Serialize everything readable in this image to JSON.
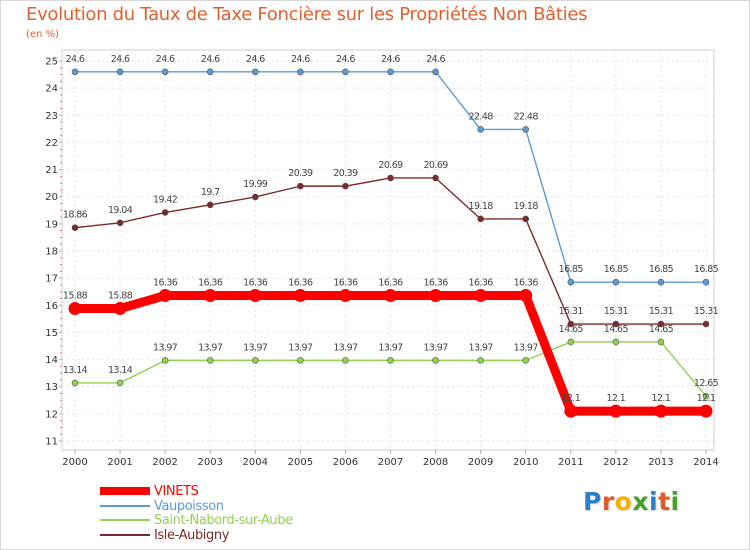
{
  "title": "Evolution du Taux de Taxe Foncière sur les Propriétés Non Bâties",
  "unit_label": "(en %)",
  "brand": {
    "text": "Proxiti",
    "letters": [
      "P",
      "r",
      "o",
      "x",
      "i",
      "t",
      "i"
    ],
    "colors": [
      "#2a7fc8",
      "#e05a2a",
      "#f2b200",
      "#4aa02c",
      "#2a7fc8",
      "#e05a2a",
      "#4aa02c"
    ]
  },
  "chart_data": {
    "type": "line",
    "title": "Evolution du Taux de Taxe Foncière sur les Propriétés Non Bâties",
    "xlabel": "",
    "ylabel": "(en %)",
    "ylim": [
      11,
      25
    ],
    "yticks": [
      11,
      12,
      13,
      14,
      15,
      16,
      17,
      18,
      19,
      20,
      21,
      22,
      23,
      24,
      25
    ],
    "categories": [
      "2000",
      "2001",
      "2002",
      "2003",
      "2004",
      "2005",
      "2006",
      "2007",
      "2008",
      "2009",
      "2010",
      "2011",
      "2012",
      "2013",
      "2014"
    ],
    "series": [
      {
        "name": "VINETS",
        "color": "#ff0000",
        "emphasis": true,
        "values": [
          15.88,
          15.88,
          16.36,
          16.36,
          16.36,
          16.36,
          16.36,
          16.36,
          16.36,
          16.36,
          16.36,
          12.1,
          12.1,
          12.1,
          12.1
        ],
        "labels": [
          "15.88",
          "15.88",
          "16.36",
          "16.36",
          "16.36",
          "16.36",
          "16.36",
          "16.36",
          "16.36",
          "16.36",
          "16.36",
          "12.1",
          "12.1",
          "12.1",
          "12.1"
        ]
      },
      {
        "name": "Vaupoisson",
        "color": "#5b9bd5",
        "emphasis": false,
        "values": [
          24.6,
          24.6,
          24.6,
          24.6,
          24.6,
          24.6,
          24.6,
          24.6,
          24.6,
          22.48,
          22.48,
          16.85,
          16.85,
          16.85,
          16.85
        ],
        "labels": [
          "24.6",
          "24.6",
          "24.6",
          "24.6",
          "24.6",
          "24.6",
          "24.6",
          "24.6",
          "24.6",
          "22.48",
          "22.48",
          "16.85",
          "16.85",
          "16.85",
          "16.85"
        ]
      },
      {
        "name": "Saint-Nabord-sur-Aube",
        "color": "#92d050",
        "emphasis": false,
        "values": [
          13.14,
          13.14,
          13.97,
          13.97,
          13.97,
          13.97,
          13.97,
          13.97,
          13.97,
          13.97,
          13.97,
          14.65,
          14.65,
          14.65,
          12.65
        ],
        "labels": [
          "13.14",
          "13.14",
          "13.97",
          "13.97",
          "13.97",
          "13.97",
          "13.97",
          "13.97",
          "13.97",
          "13.97",
          "13.97",
          "14.65",
          "14.65",
          "14.65",
          "12.65"
        ]
      },
      {
        "name": "Isle-Aubigny",
        "color": "#7b2a2a",
        "emphasis": false,
        "values": [
          18.86,
          19.04,
          19.42,
          19.7,
          19.99,
          20.39,
          20.39,
          20.69,
          20.69,
          19.18,
          19.18,
          15.31,
          15.31,
          15.31,
          15.31
        ],
        "labels": [
          "18.86",
          "19.04",
          "19.42",
          "19.7",
          "19.99",
          "20.39",
          "20.39",
          "20.69",
          "20.69",
          "19.18",
          "19.18",
          "15.31",
          "15.31",
          "15.31",
          "15.31"
        ]
      }
    ]
  }
}
